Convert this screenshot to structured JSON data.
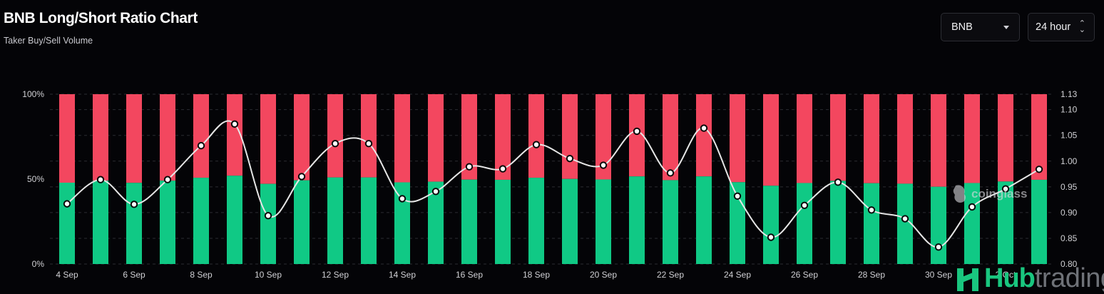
{
  "header": {
    "title": "BNB Long/Short Ratio Chart",
    "subtitle": "Taker Buy/Sell Volume"
  },
  "controls": {
    "coin_label": "BNB",
    "period_label": "24 hour"
  },
  "watermark": {
    "text": "coinglass"
  },
  "brand": {
    "hub": "Hub",
    "trading": "trading"
  },
  "colors": {
    "long": "#10c985",
    "short": "#f3475f",
    "ratio_line": "#e6e6e6",
    "background": "#040407"
  },
  "chart_data": {
    "type": "bar",
    "title": "BNB Long/Short Ratio Chart",
    "subtitle": "Taker Buy/Sell Volume",
    "categories": [
      "4 Sep",
      "5 Sep",
      "6 Sep",
      "7 Sep",
      "8 Sep",
      "9 Sep",
      "10 Sep",
      "11 Sep",
      "12 Sep",
      "13 Sep",
      "14 Sep",
      "15 Sep",
      "16 Sep",
      "17 Sep",
      "18 Sep",
      "19 Sep",
      "20 Sep",
      "21 Sep",
      "22 Sep",
      "23 Sep",
      "24 Sep",
      "25 Sep",
      "26 Sep",
      "27 Sep",
      "28 Sep",
      "29 Sep",
      "30 Sep",
      "1 Oct",
      "2 Oct",
      "3 Oct"
    ],
    "x_tick_labels": [
      "4 Sep",
      "6 Sep",
      "8 Sep",
      "10 Sep",
      "12 Sep",
      "14 Sep",
      "16 Sep",
      "18 Sep",
      "20 Sep",
      "22 Sep",
      "24 Sep",
      "26 Sep",
      "28 Sep",
      "30 Sep",
      "2 Oct"
    ],
    "stacked": true,
    "series": [
      {
        "values": [
          47.9,
          49.1,
          47.8,
          49.1,
          50.8,
          52.0,
          47.2,
          49.3,
          51.0,
          51.0,
          48.1,
          48.5,
          49.7,
          49.6,
          50.8,
          50.1,
          49.8,
          51.6,
          49.4,
          51.6,
          48.2,
          46.1,
          47.7,
          49.0,
          47.6,
          47.3,
          45.5,
          47.7,
          48.6,
          49.6
        ],
        "color": "#10c985"
      },
      {
        "values": [
          52.1,
          50.9,
          52.2,
          50.9,
          49.2,
          48.0,
          52.8,
          50.7,
          49.0,
          49.0,
          51.9,
          51.5,
          50.3,
          50.4,
          49.2,
          49.9,
          50.2,
          48.4,
          50.6,
          48.4,
          51.8,
          53.9,
          52.3,
          51.0,
          52.4,
          52.7,
          54.5,
          52.3,
          51.4,
          50.4
        ],
        "color": "#f3475f"
      },
      {
        "values": [
          0.917,
          0.964,
          0.916,
          0.964,
          1.03,
          1.072,
          0.894,
          0.97,
          1.034,
          1.034,
          0.927,
          0.941,
          0.989,
          0.985,
          1.032,
          1.005,
          0.992,
          1.058,
          0.977,
          1.064,
          0.932,
          0.852,
          0.914,
          0.959,
          0.905,
          0.888,
          0.833,
          0.911,
          0.946,
          0.984
        ],
        "color": "#e6e6e6",
        "axis": "right"
      }
    ],
    "y_left": {
      "ticks": [
        "0%",
        "50%",
        "100%"
      ],
      "range": [
        0,
        100
      ]
    },
    "y_right": {
      "ticks": [
        "0.80",
        "0.85",
        "0.90",
        "0.95",
        "1.00",
        "1.05",
        "1.10",
        "1.13"
      ],
      "range": [
        0.8,
        1.13
      ]
    },
    "grid": true
  }
}
